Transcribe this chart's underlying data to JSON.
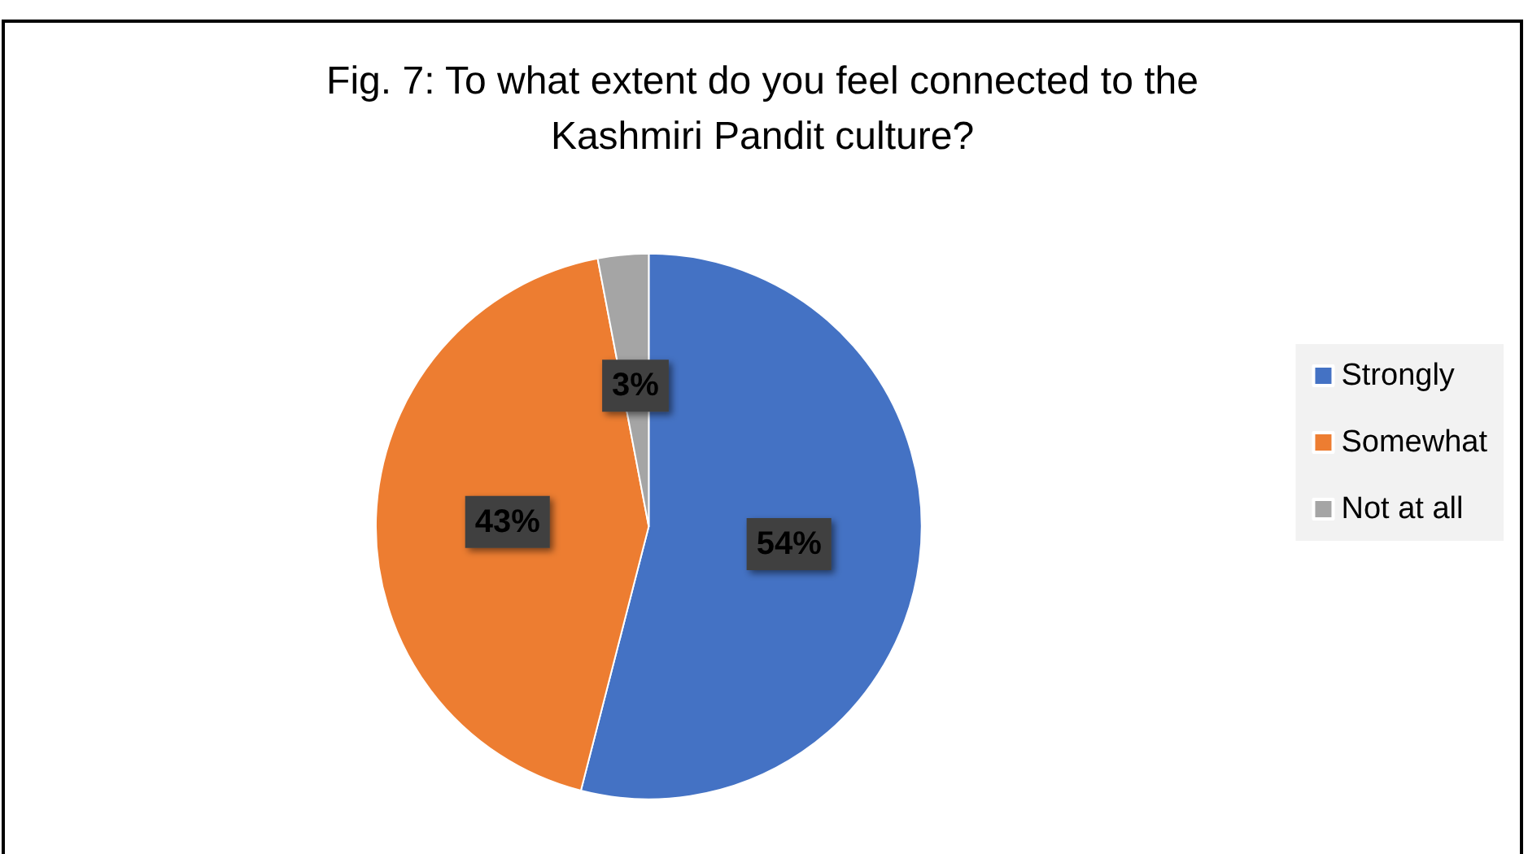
{
  "chart_data": {
    "type": "pie",
    "title": "Fig. 7: To what extent do you feel connected to the\nKashmiri Pandit culture?",
    "categories": [
      "Strongly",
      "Somewhat",
      "Not at all"
    ],
    "values": [
      54,
      43,
      3
    ],
    "colors": [
      "#4472c4",
      "#ed7d31",
      "#a5a5a5"
    ],
    "value_labels": [
      "54%",
      "43%",
      "3%"
    ],
    "legend": "right"
  }
}
